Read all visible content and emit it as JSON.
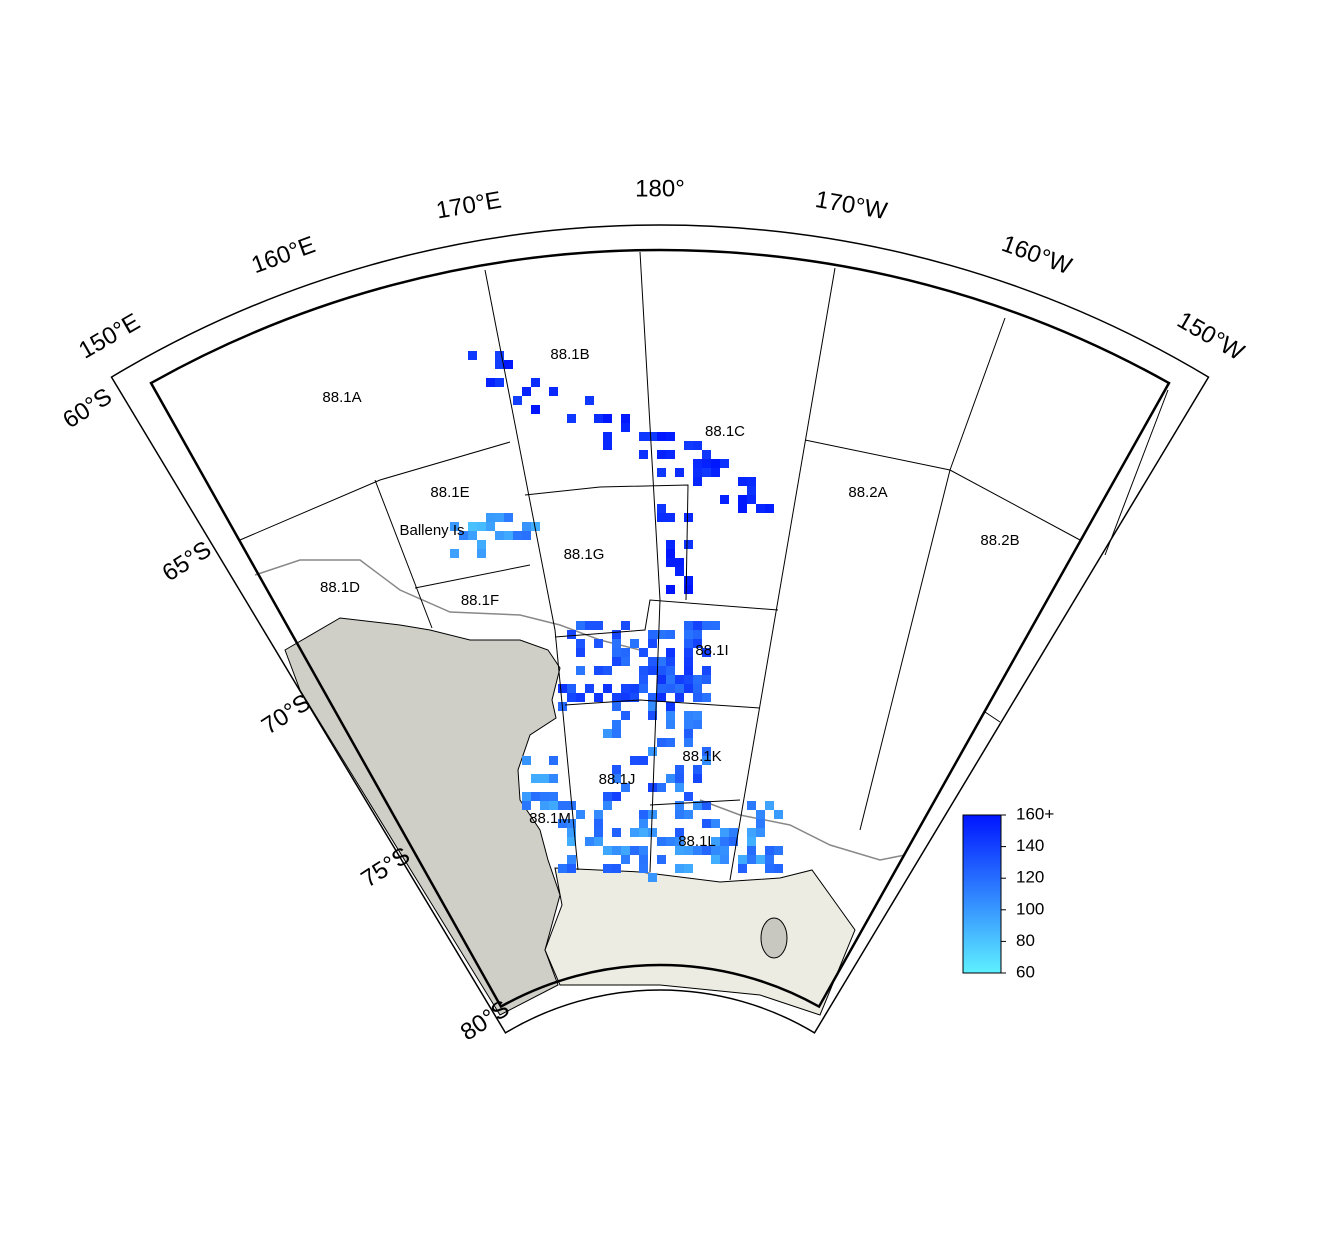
{
  "map": {
    "longitude_labels": [
      "150°E",
      "160°E",
      "170°E",
      "180°",
      "170°W",
      "160°W",
      "150°W"
    ],
    "latitude_labels": [
      "60°S",
      "65°S",
      "70°S",
      "75°S",
      "80°S"
    ],
    "areas": [
      "88.1A",
      "88.1B",
      "88.1C",
      "88.1D",
      "88.1E",
      "88.1F",
      "88.1G",
      "88.1I",
      "88.1J",
      "88.1K",
      "88.1L",
      "88.1M",
      "88.2A",
      "88.2B"
    ],
    "place_label": "Balleny Is",
    "legend": {
      "colors": [
        "#5ef0ff",
        "#0015ff"
      ],
      "range": [
        60,
        160
      ],
      "ticks": [
        60,
        80,
        100,
        120,
        140,
        {
          "value": 160,
          "label": "160+"
        }
      ]
    }
  }
}
